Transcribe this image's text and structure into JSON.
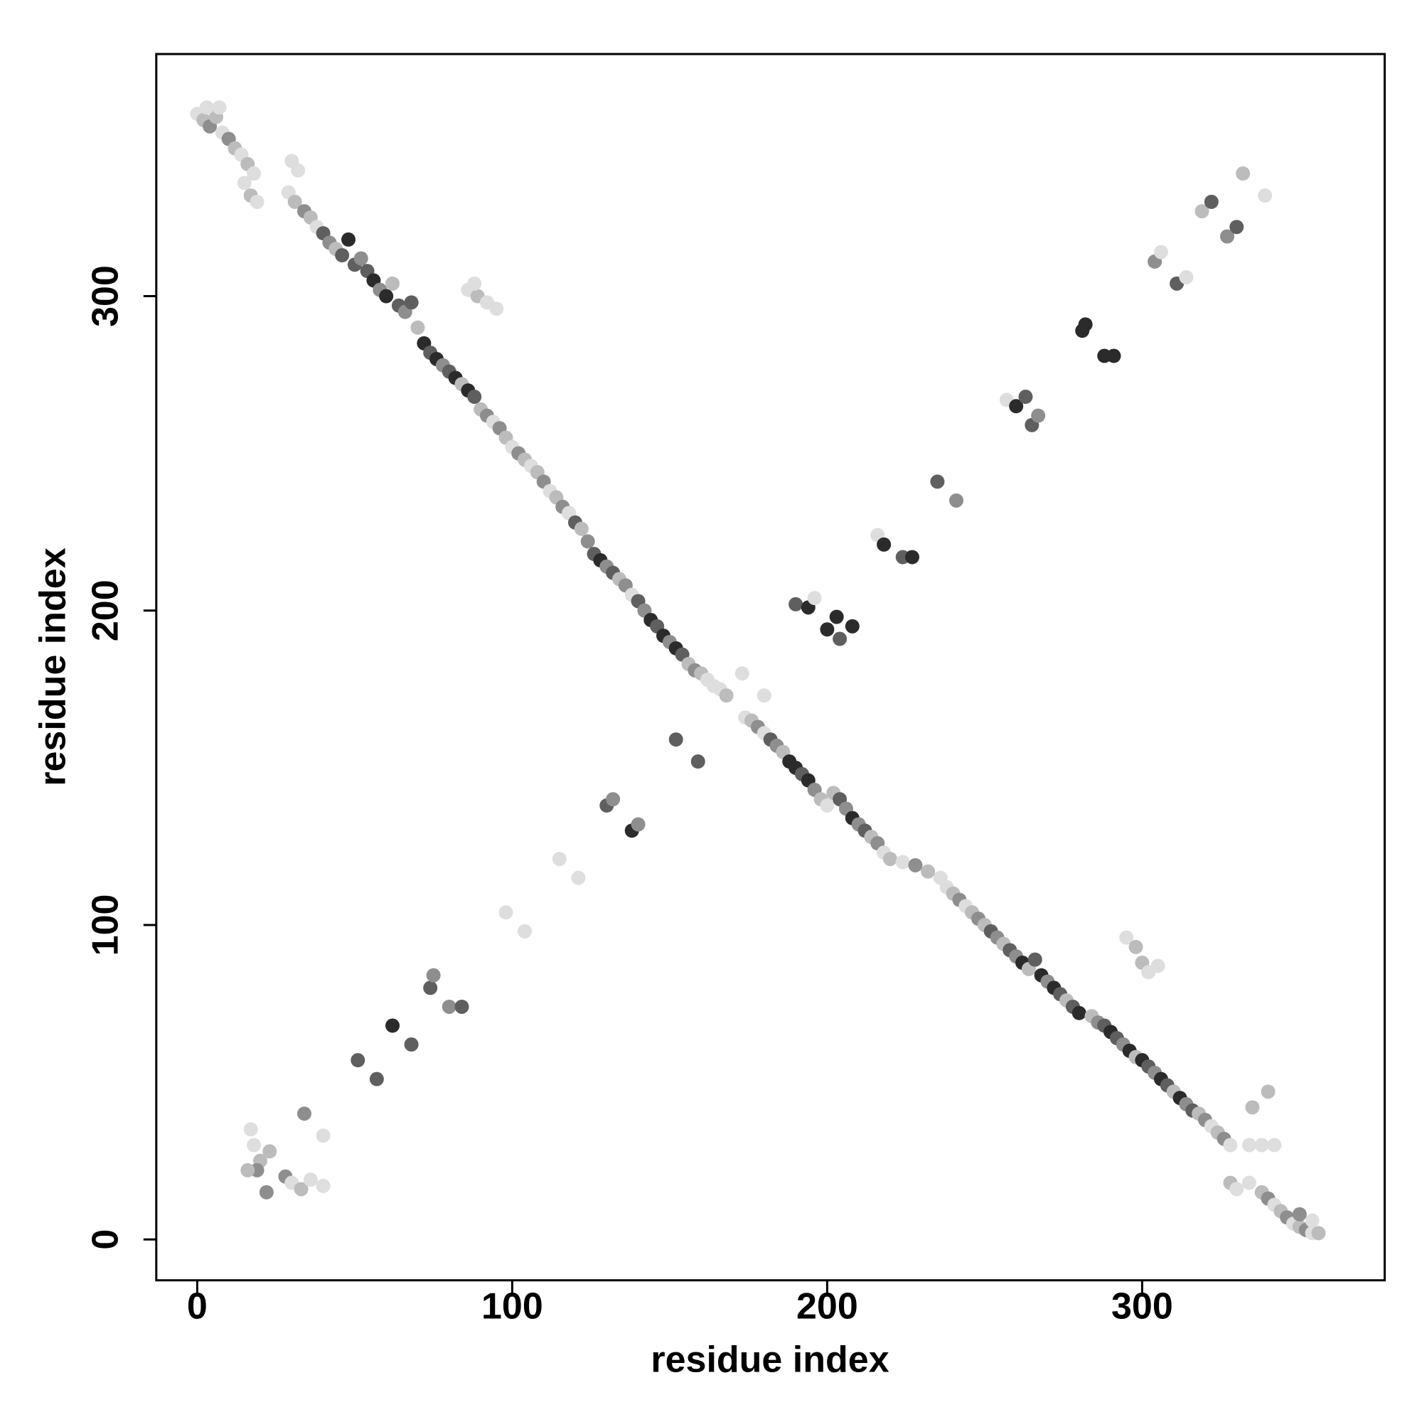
{
  "chart_data": {
    "type": "scatter",
    "xlabel": "residue index",
    "ylabel": "residue index",
    "xlim": [
      -13,
      377
    ],
    "ylim": [
      -13,
      377
    ],
    "xticks": [
      0,
      100,
      200,
      300
    ],
    "yticks": [
      0,
      100,
      200,
      300
    ],
    "x": [
      0,
      2,
      4,
      6,
      8,
      10,
      3,
      7,
      12,
      14,
      16,
      18,
      15,
      17,
      19,
      30,
      32,
      29,
      31,
      34,
      36,
      38,
      40,
      42,
      44,
      46,
      48,
      50,
      52,
      54,
      56,
      58,
      60,
      62,
      64,
      66,
      68,
      70,
      72,
      74,
      76,
      78,
      80,
      82,
      84,
      86,
      88,
      90,
      92,
      94,
      96,
      98,
      100,
      102,
      104,
      106,
      108,
      110,
      112,
      114,
      116,
      118,
      120,
      122,
      124,
      126,
      128,
      130,
      132,
      134,
      136,
      138,
      140,
      142,
      144,
      146,
      148,
      150,
      152,
      154,
      156,
      158,
      160,
      162,
      164,
      166,
      168,
      174,
      176,
      178,
      180,
      182,
      184,
      186,
      188,
      190,
      192,
      194,
      196,
      198,
      200,
      202,
      204,
      206,
      208,
      210,
      212,
      214,
      216,
      218,
      220,
      224,
      228,
      232,
      236,
      238,
      240,
      242,
      244,
      246,
      248,
      250,
      252,
      254,
      256,
      258,
      260,
      262,
      264,
      266,
      268,
      270,
      272,
      274,
      276,
      278,
      280,
      284,
      286,
      288,
      290,
      292,
      294,
      296,
      298,
      300,
      302,
      304,
      306,
      308,
      310,
      312,
      314,
      316,
      318,
      320,
      322,
      324,
      326,
      328,
      328,
      330,
      334,
      338,
      340,
      342,
      344,
      346,
      348,
      350,
      352,
      354,
      356,
      350,
      354,
      86,
      89,
      92,
      95,
      88,
      295,
      298,
      300,
      302,
      305,
      340,
      335,
      334,
      338,
      342,
      18,
      20,
      17,
      23,
      19,
      28,
      30,
      33,
      36,
      40,
      22,
      16,
      34,
      40,
      51,
      57,
      62,
      68,
      74,
      80,
      75,
      84,
      98,
      104,
      115,
      121,
      130,
      138,
      132,
      140,
      152,
      159,
      173,
      180,
      190,
      194,
      196,
      200,
      203,
      204,
      208,
      216,
      218,
      224,
      227,
      235,
      241,
      257,
      260,
      263,
      265,
      267,
      281,
      282,
      288,
      291,
      304,
      306,
      311,
      314,
      319,
      322,
      327,
      330,
      332,
      339
    ],
    "y": [
      358,
      356,
      354,
      357,
      352,
      350,
      360,
      360,
      347,
      345,
      342,
      339,
      336,
      332,
      330,
      343,
      340,
      333,
      330,
      327,
      325,
      322,
      320,
      317,
      315,
      313,
      318,
      310,
      312,
      308,
      305,
      302,
      300,
      304,
      297,
      295,
      298,
      290,
      285,
      282,
      280,
      278,
      276,
      274,
      272,
      270,
      268,
      264,
      262,
      260,
      258,
      255,
      252,
      250,
      248,
      246,
      244,
      241,
      238,
      236,
      233,
      231,
      228,
      226,
      222,
      218,
      216,
      214,
      212,
      210,
      208,
      205,
      203,
      200,
      197,
      195,
      192,
      190,
      188,
      186,
      183,
      181,
      180,
      178,
      176,
      175,
      173,
      166,
      165,
      163,
      161,
      159,
      157,
      155,
      152,
      150,
      148,
      146,
      143,
      140,
      138,
      142,
      140,
      137,
      134,
      132,
      130,
      128,
      126,
      123,
      121,
      120,
      119,
      117,
      115,
      112,
      110,
      108,
      106,
      104,
      102,
      100,
      98,
      96,
      94,
      92,
      90,
      88,
      86,
      89,
      84,
      82,
      80,
      78,
      76,
      74,
      72,
      71,
      69,
      68,
      66,
      64,
      62,
      60,
      58,
      57,
      55,
      53,
      51,
      49,
      47,
      45,
      43,
      41,
      40,
      38,
      36,
      34,
      32,
      30,
      18,
      16,
      18,
      15,
      13,
      11,
      9,
      7,
      5,
      4,
      3,
      2,
      2,
      8,
      6,
      302,
      300,
      298,
      296,
      304,
      96,
      93,
      88,
      85,
      87,
      47,
      42,
      30,
      30,
      30,
      30,
      25,
      35,
      28,
      22,
      20,
      18,
      16,
      19,
      17,
      15,
      22,
      40,
      33,
      57,
      51,
      68,
      62,
      80,
      74,
      84,
      74,
      104,
      98,
      121,
      115,
      138,
      130,
      140,
      132,
      159,
      152,
      180,
      173,
      202,
      201,
      204,
      194,
      198,
      191,
      195,
      224,
      221,
      217,
      217,
      241,
      235,
      267,
      265,
      268,
      259,
      262,
      289,
      291,
      281,
      281,
      311,
      314,
      304,
      306,
      327,
      330,
      319,
      322,
      339,
      332
    ],
    "colors": [
      "#dedede",
      "#bcbcbc",
      "#8e8e8e",
      "#bcbcbc",
      "#dedede",
      "#8e8e8e",
      "#dedede",
      "#dedede",
      "#bcbcbc",
      "#dedede",
      "#bcbcbc",
      "#dedede",
      "#dedede",
      "#bcbcbc",
      "#dedede",
      "#dedede",
      "#dedede",
      "#dedede",
      "#bcbcbc",
      "#8e8e8e",
      "#bcbcbc",
      "#dedede",
      "#5f5f5f",
      "#8e8e8e",
      "#bcbcbc",
      "#5f5f5f",
      "#2b2b2b",
      "#5f5f5f",
      "#8e8e8e",
      "#5f5f5f",
      "#2b2b2b",
      "#8e8e8e",
      "#2b2b2b",
      "#bcbcbc",
      "#5f5f5f",
      "#8e8e8e",
      "#5f5f5f",
      "#bcbcbc",
      "#2b2b2b",
      "#5f5f5f",
      "#2b2b2b",
      "#8e8e8e",
      "#5f5f5f",
      "#2b2b2b",
      "#bcbcbc",
      "#2b2b2b",
      "#5f5f5f",
      "#bcbcbc",
      "#8e8e8e",
      "#dedede",
      "#8e8e8e",
      "#bcbcbc",
      "#dedede",
      "#8e8e8e",
      "#bcbcbc",
      "#dedede",
      "#bcbcbc",
      "#8e8e8e",
      "#dedede",
      "#bcbcbc",
      "#8e8e8e",
      "#dedede",
      "#5f5f5f",
      "#bcbcbc",
      "#8e8e8e",
      "#5f5f5f",
      "#2b2b2b",
      "#8e8e8e",
      "#5f5f5f",
      "#bcbcbc",
      "#8e8e8e",
      "#dedede",
      "#5f5f5f",
      "#8e8e8e",
      "#2b2b2b",
      "#5f5f5f",
      "#2b2b2b",
      "#8e8e8e",
      "#2b2b2b",
      "#5f5f5f",
      "#bcbcbc",
      "#8e8e8e",
      "#bcbcbc",
      "#dedede",
      "#dedede",
      "#dedede",
      "#bcbcbc",
      "#dedede",
      "#bcbcbc",
      "#8e8e8e",
      "#dedede",
      "#5f5f5f",
      "#8e8e8e",
      "#bcbcbc",
      "#2b2b2b",
      "#2b2b2b",
      "#5f5f5f",
      "#2b2b2b",
      "#8e8e8e",
      "#bcbcbc",
      "#dedede",
      "#bcbcbc",
      "#5f5f5f",
      "#8e8e8e",
      "#2b2b2b",
      "#8e8e8e",
      "#5f5f5f",
      "#bcbcbc",
      "#8e8e8e",
      "#dedede",
      "#bcbcbc",
      "#dedede",
      "#8e8e8e",
      "#bcbcbc",
      "#dedede",
      "#dedede",
      "#bcbcbc",
      "#8e8e8e",
      "#dedede",
      "#bcbcbc",
      "#8e8e8e",
      "#bcbcbc",
      "#5f5f5f",
      "#8e8e8e",
      "#bcbcbc",
      "#5f5f5f",
      "#8e8e8e",
      "#2b2b2b",
      "#bcbcbc",
      "#5f5f5f",
      "#2b2b2b",
      "#8e8e8e",
      "#2b2b2b",
      "#5f5f5f",
      "#bcbcbc",
      "#5f5f5f",
      "#2b2b2b",
      "#bcbcbc",
      "#8e8e8e",
      "#5f5f5f",
      "#2b2b2b",
      "#5f5f5f",
      "#8e8e8e",
      "#2b2b2b",
      "#bcbcbc",
      "#2b2b2b",
      "#5f5f5f",
      "#8e8e8e",
      "#2b2b2b",
      "#5f5f5f",
      "#bcbcbc",
      "#2b2b2b",
      "#8e8e8e",
      "#5f5f5f",
      "#bcbcbc",
      "#8e8e8e",
      "#dedede",
      "#bcbcbc",
      "#8e8e8e",
      "#dedede",
      "#bcbcbc",
      "#dedede",
      "#dedede",
      "#bcbcbc",
      "#8e8e8e",
      "#dedede",
      "#bcbcbc",
      "#8e8e8e",
      "#dedede",
      "#bcbcbc",
      "#8e8e8e",
      "#dedede",
      "#bcbcbc",
      "#8e8e8e",
      "#dedede",
      "#dedede",
      "#bcbcbc",
      "#dedede",
      "#dedede",
      "#dedede",
      "#dedede",
      "#bcbcbc",
      "#bcbcbc",
      "#dedede",
      "#dedede",
      "#bcbcbc",
      "#bcbcbc",
      "#dedede",
      "#dedede",
      "#dedede",
      "#dedede",
      "#bcbcbc",
      "#dedede",
      "#bcbcbc",
      "#8e8e8e",
      "#8e8e8e",
      "#dedede",
      "#bcbcbc",
      "#dedede",
      "#dedede",
      "#8e8e8e",
      "#bcbcbc",
      "#8e8e8e",
      "#dedede",
      "#5f5f5f",
      "#5f5f5f",
      "#2b2b2b",
      "#5f5f5f",
      "#5f5f5f",
      "#8e8e8e",
      "#8e8e8e",
      "#5f5f5f",
      "#dedede",
      "#dedede",
      "#dedede",
      "#dedede",
      "#5f5f5f",
      "#2b2b2b",
      "#8e8e8e",
      "#8e8e8e",
      "#5f5f5f",
      "#5f5f5f",
      "#dedede",
      "#dedede",
      "#5f5f5f",
      "#2b2b2b",
      "#dedede",
      "#2b2b2b",
      "#2b2b2b",
      "#5f5f5f",
      "#2b2b2b",
      "#dedede",
      "#2b2b2b",
      "#5f5f5f",
      "#2b2b2b",
      "#5f5f5f",
      "#8e8e8e",
      "#dedede",
      "#2b2b2b",
      "#5f5f5f",
      "#5f5f5f",
      "#8e8e8e",
      "#2b2b2b",
      "#2b2b2b",
      "#2b2b2b",
      "#2b2b2b",
      "#8e8e8e",
      "#dedede",
      "#5f5f5f",
      "#dedede",
      "#bcbcbc",
      "#5f5f5f",
      "#8e8e8e",
      "#5f5f5f",
      "#bcbcbc",
      "#dedede"
    ]
  }
}
